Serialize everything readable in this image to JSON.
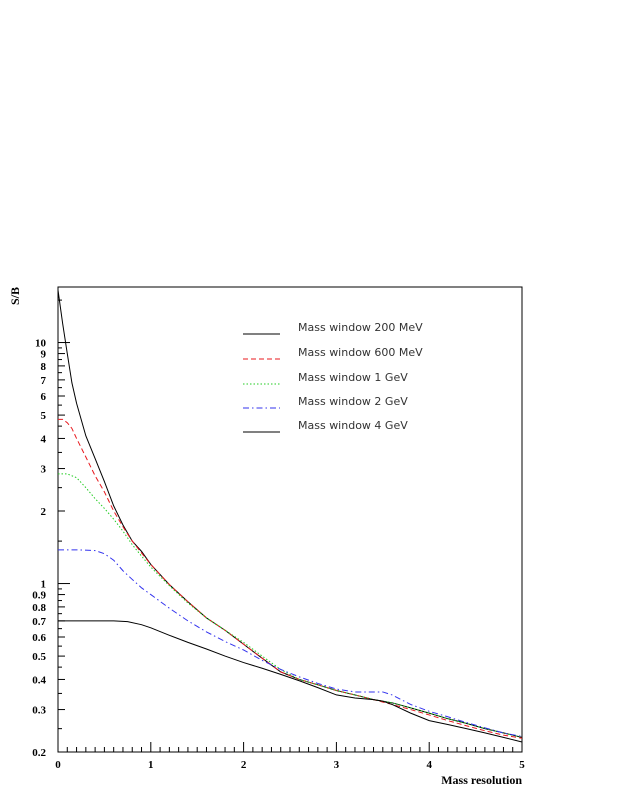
{
  "chart_data": {
    "type": "line",
    "title": "",
    "xlabel": "Mass resolution",
    "ylabel": "S/B",
    "xlim": [
      0,
      5
    ],
    "ylim": [
      0.2,
      17
    ],
    "yscale": "log",
    "grid": false,
    "legend_position": "top-right",
    "x_ticks": [
      "0",
      "1",
      "2",
      "3",
      "4",
      "5"
    ],
    "y_ticks": [
      {
        "value": 0.2,
        "label": "0.2"
      },
      {
        "value": 0.3,
        "label": "0.3"
      },
      {
        "value": 0.4,
        "label": "0.4"
      },
      {
        "value": 0.5,
        "label": "0.5"
      },
      {
        "value": 0.6,
        "label": "0.6"
      },
      {
        "value": 0.7,
        "label": "0.7"
      },
      {
        "value": 0.8,
        "label": "0.8"
      },
      {
        "value": 0.9,
        "label": "0.9"
      },
      {
        "value": 1,
        "label": "1"
      },
      {
        "value": 2,
        "label": "2"
      },
      {
        "value": 3,
        "label": "3"
      },
      {
        "value": 4,
        "label": "4"
      },
      {
        "value": 5,
        "label": "5"
      },
      {
        "value": 6,
        "label": "6"
      },
      {
        "value": 7,
        "label": "7"
      },
      {
        "value": 8,
        "label": "8"
      },
      {
        "value": 9,
        "label": "9"
      },
      {
        "value": 10,
        "label": "10"
      }
    ],
    "series": [
      {
        "name": "Mass window 200 MeV",
        "color": "#000000",
        "dash": "solid",
        "points": [
          [
            0,
            16.5
          ],
          [
            0.05,
            12
          ],
          [
            0.1,
            9
          ],
          [
            0.15,
            6.8
          ],
          [
            0.2,
            5.6
          ],
          [
            0.3,
            4.1
          ],
          [
            0.4,
            3.3
          ],
          [
            0.5,
            2.65
          ],
          [
            0.6,
            2.1
          ],
          [
            0.7,
            1.75
          ],
          [
            0.8,
            1.5
          ],
          [
            0.9,
            1.36
          ],
          [
            1.0,
            1.2
          ],
          [
            1.2,
            0.99
          ],
          [
            1.4,
            0.84
          ],
          [
            1.6,
            0.72
          ],
          [
            1.8,
            0.64
          ],
          [
            2.0,
            0.56
          ],
          [
            2.2,
            0.49
          ],
          [
            2.4,
            0.43
          ],
          [
            2.6,
            0.4
          ],
          [
            2.8,
            0.38
          ],
          [
            3.0,
            0.36
          ],
          [
            3.2,
            0.345
          ],
          [
            3.4,
            0.33
          ],
          [
            3.6,
            0.32
          ],
          [
            3.8,
            0.305
          ],
          [
            4.0,
            0.29
          ],
          [
            4.2,
            0.275
          ],
          [
            4.4,
            0.263
          ],
          [
            4.6,
            0.25
          ],
          [
            4.8,
            0.24
          ],
          [
            5.0,
            0.23
          ]
        ]
      },
      {
        "name": "Mass window 600 MeV",
        "color": "#e8191e",
        "dash": "dashed",
        "points": [
          [
            0,
            4.8
          ],
          [
            0.05,
            4.8
          ],
          [
            0.1,
            4.65
          ],
          [
            0.15,
            4.4
          ],
          [
            0.2,
            4.0
          ],
          [
            0.3,
            3.35
          ],
          [
            0.4,
            2.8
          ],
          [
            0.5,
            2.4
          ],
          [
            0.6,
            2.0
          ],
          [
            0.7,
            1.72
          ],
          [
            0.8,
            1.5
          ],
          [
            0.9,
            1.34
          ],
          [
            1.0,
            1.2
          ],
          [
            1.2,
            0.99
          ],
          [
            1.4,
            0.84
          ],
          [
            1.6,
            0.72
          ],
          [
            1.8,
            0.64
          ],
          [
            2.0,
            0.56
          ],
          [
            2.2,
            0.49
          ],
          [
            2.4,
            0.43
          ],
          [
            2.6,
            0.4
          ],
          [
            2.8,
            0.38
          ],
          [
            3.0,
            0.36
          ],
          [
            3.2,
            0.345
          ],
          [
            3.4,
            0.33
          ],
          [
            3.6,
            0.315
          ],
          [
            3.8,
            0.3
          ],
          [
            4.0,
            0.285
          ],
          [
            4.2,
            0.27
          ],
          [
            4.4,
            0.257
          ],
          [
            4.6,
            0.245
          ],
          [
            4.8,
            0.235
          ],
          [
            5.0,
            0.228
          ]
        ]
      },
      {
        "name": "Mass window 1 GeV",
        "color": "#22cc22",
        "dash": "dotted",
        "points": [
          [
            0,
            2.85
          ],
          [
            0.1,
            2.85
          ],
          [
            0.2,
            2.75
          ],
          [
            0.3,
            2.5
          ],
          [
            0.4,
            2.25
          ],
          [
            0.5,
            2.05
          ],
          [
            0.6,
            1.85
          ],
          [
            0.7,
            1.65
          ],
          [
            0.8,
            1.45
          ],
          [
            0.9,
            1.3
          ],
          [
            1.0,
            1.17
          ],
          [
            1.2,
            0.98
          ],
          [
            1.4,
            0.83
          ],
          [
            1.6,
            0.72
          ],
          [
            1.8,
            0.64
          ],
          [
            2.0,
            0.57
          ],
          [
            2.2,
            0.5
          ],
          [
            2.4,
            0.44
          ],
          [
            2.6,
            0.4
          ],
          [
            2.8,
            0.38
          ],
          [
            3.0,
            0.36
          ],
          [
            3.2,
            0.345
          ],
          [
            3.4,
            0.33
          ],
          [
            3.6,
            0.32
          ],
          [
            3.8,
            0.305
          ],
          [
            4.0,
            0.29
          ],
          [
            4.2,
            0.275
          ],
          [
            4.4,
            0.263
          ],
          [
            4.6,
            0.25
          ],
          [
            4.8,
            0.24
          ],
          [
            5.0,
            0.23
          ]
        ]
      },
      {
        "name": "Mass window 2 GeV",
        "color": "#3333ee",
        "dash": "dashdot",
        "points": [
          [
            0,
            1.38
          ],
          [
            0.2,
            1.38
          ],
          [
            0.4,
            1.37
          ],
          [
            0.5,
            1.33
          ],
          [
            0.6,
            1.25
          ],
          [
            0.7,
            1.13
          ],
          [
            0.8,
            1.04
          ],
          [
            0.9,
            0.96
          ],
          [
            1.0,
            0.9
          ],
          [
            1.2,
            0.79
          ],
          [
            1.4,
            0.7
          ],
          [
            1.6,
            0.63
          ],
          [
            1.8,
            0.575
          ],
          [
            2.0,
            0.53
          ],
          [
            2.2,
            0.48
          ],
          [
            2.4,
            0.44
          ],
          [
            2.6,
            0.41
          ],
          [
            2.8,
            0.385
          ],
          [
            3.0,
            0.365
          ],
          [
            3.2,
            0.355
          ],
          [
            3.4,
            0.355
          ],
          [
            3.5,
            0.355
          ],
          [
            3.6,
            0.345
          ],
          [
            3.8,
            0.315
          ],
          [
            4.0,
            0.295
          ],
          [
            4.2,
            0.28
          ],
          [
            4.4,
            0.265
          ],
          [
            4.6,
            0.252
          ],
          [
            4.8,
            0.24
          ],
          [
            5.0,
            0.232
          ]
        ]
      },
      {
        "name": "Mass window 4 GeV",
        "color": "#000000",
        "dash": "solid",
        "points": [
          [
            0,
            0.7
          ],
          [
            0.2,
            0.7
          ],
          [
            0.4,
            0.7
          ],
          [
            0.6,
            0.7
          ],
          [
            0.75,
            0.695
          ],
          [
            0.9,
            0.675
          ],
          [
            1.0,
            0.655
          ],
          [
            1.2,
            0.61
          ],
          [
            1.4,
            0.57
          ],
          [
            1.6,
            0.535
          ],
          [
            1.8,
            0.5
          ],
          [
            2.0,
            0.47
          ],
          [
            2.2,
            0.445
          ],
          [
            2.4,
            0.42
          ],
          [
            2.6,
            0.395
          ],
          [
            2.8,
            0.37
          ],
          [
            3.0,
            0.345
          ],
          [
            3.2,
            0.335
          ],
          [
            3.4,
            0.33
          ],
          [
            3.5,
            0.325
          ],
          [
            3.6,
            0.315
          ],
          [
            3.8,
            0.29
          ],
          [
            4.0,
            0.27
          ],
          [
            4.2,
            0.26
          ],
          [
            4.4,
            0.25
          ],
          [
            4.6,
            0.24
          ],
          [
            4.8,
            0.23
          ],
          [
            5.0,
            0.22
          ]
        ]
      }
    ]
  }
}
